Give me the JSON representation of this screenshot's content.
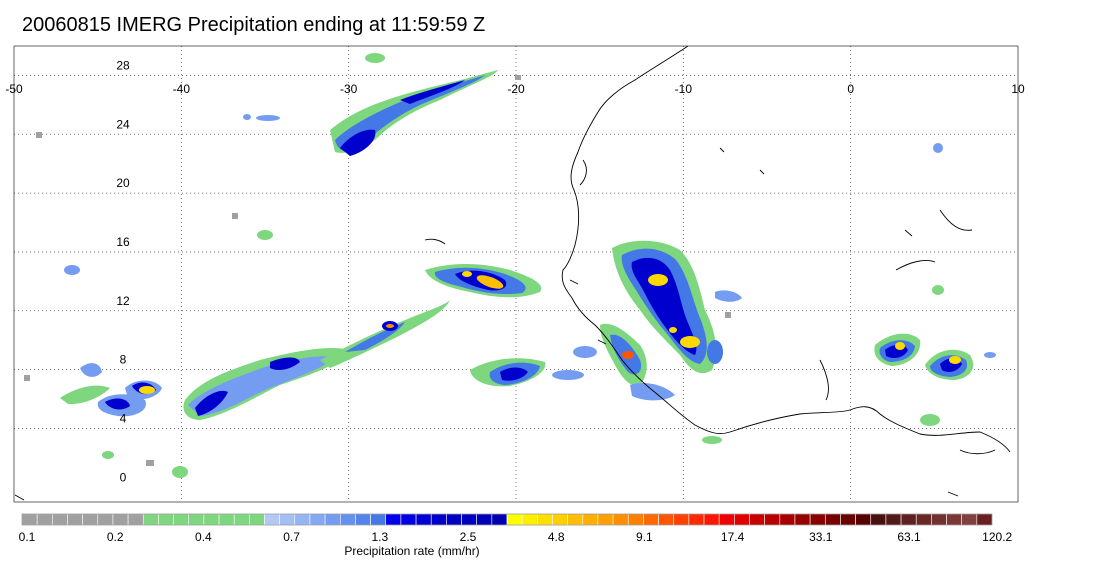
{
  "title": "20060815 IMERG Precipitation ending at 11:59:59 Z",
  "map": {
    "lon_range": [
      -50,
      10
    ],
    "lat_range": [
      -1,
      30
    ],
    "lon_ticks": [
      "-50",
      "-40",
      "-30",
      "-20",
      "-10",
      "0",
      "10"
    ],
    "lat_ticks": [
      "0",
      "4",
      "8",
      "12",
      "16",
      "20",
      "24",
      "28"
    ],
    "grid": "dotted",
    "coastline_color": "#000000"
  },
  "colorbar": {
    "title": "Precipitation rate (mm/hr)",
    "labels": [
      "0.1",
      "0.2",
      "0.4",
      "0.7",
      "1.3",
      "2.5",
      "4.8",
      "9.1",
      "17.4",
      "33.1",
      "63.1",
      "120.2"
    ],
    "colors": [
      "#a0a0a0",
      "#a0a0a0",
      "#a0a0a0",
      "#a0a0a0",
      "#a0a0a0",
      "#a0a0a0",
      "#a0a0a0",
      "#a0a0a0",
      "#7ed67e",
      "#7ed67e",
      "#7ed67e",
      "#7ed67e",
      "#7ed67e",
      "#7ed67e",
      "#7ed67e",
      "#7ed67e",
      "#b4c8f8",
      "#a4bef6",
      "#94b4f4",
      "#84a8f2",
      "#749cf0",
      "#6490ee",
      "#5484ea",
      "#4478e6",
      "#0000ee",
      "#0000e2",
      "#0000d6",
      "#0000ca",
      "#0000c4",
      "#0000be",
      "#0000b8",
      "#0000b2",
      "#ffff00",
      "#ffef00",
      "#ffdf00",
      "#ffcf00",
      "#ffbf00",
      "#ffaf00",
      "#ff9f00",
      "#ff8f00",
      "#ff7f00",
      "#ff6a00",
      "#ff5500",
      "#ff4000",
      "#ff2b00",
      "#ff1600",
      "#f00000",
      "#e00000",
      "#c80000",
      "#b80000",
      "#a80000",
      "#980000",
      "#880000",
      "#780000",
      "#680000",
      "#580000",
      "#4a1010",
      "#541818",
      "#5e2020",
      "#682828",
      "#723030",
      "#7c3838",
      "#804040",
      "#6a2020"
    ]
  }
}
